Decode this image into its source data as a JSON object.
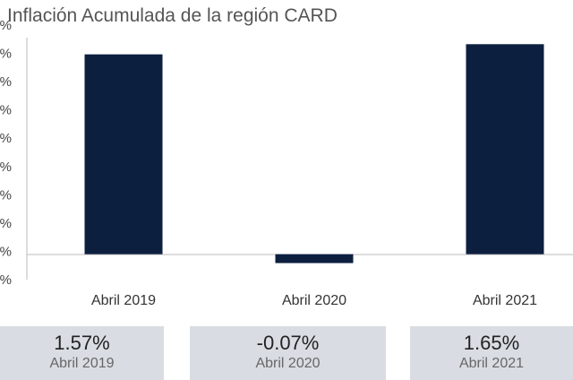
{
  "title": "Inflación Acumulada de la región CARD",
  "chart_data": {
    "type": "bar",
    "categories": [
      "Abril 2019",
      "Abril 2020",
      "Abril 2021"
    ],
    "values": [
      1.57,
      -0.07,
      1.65
    ],
    "ylim": [
      -0.2,
      1.8
    ],
    "yticks": [
      "%",
      "%",
      "%",
      "%",
      "%",
      "%",
      "%",
      "%",
      "%",
      "%"
    ],
    "bar_color": "#0d1f3f",
    "grid": false
  },
  "cards": [
    {
      "value": "1.57%",
      "label": "Abril 2019"
    },
    {
      "value": "-0.07%",
      "label": "Abril 2020"
    },
    {
      "value": "1.65%",
      "label": "Abril 2021"
    }
  ]
}
